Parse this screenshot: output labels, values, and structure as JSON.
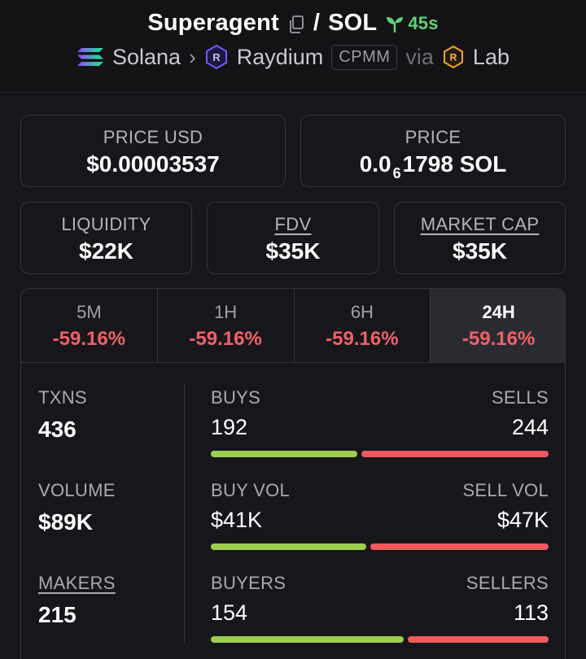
{
  "header": {
    "token": "Superagent",
    "separator": "/",
    "quote": "SOL",
    "age": "45s",
    "chain": "Solana",
    "dex": "Raydium",
    "pool_type": "CPMM",
    "via": "via",
    "launchpad": "Lab"
  },
  "cards": {
    "price_usd": {
      "label": "PRICE USD",
      "value": "$0.00003537"
    },
    "price": {
      "label": "PRICE",
      "prefix": "0.0",
      "zeros": "6",
      "digits": "1798",
      "unit": "SOL"
    },
    "liquidity": {
      "label": "LIQUIDITY",
      "value": "$22K"
    },
    "fdv": {
      "label": "FDV",
      "value": "$35K"
    },
    "market_cap": {
      "label": "MARKET CAP",
      "value": "$35K"
    }
  },
  "tabs": [
    {
      "label": "5M",
      "change": "-59.16%"
    },
    {
      "label": "1H",
      "change": "-59.16%"
    },
    {
      "label": "6H",
      "change": "-59.16%"
    },
    {
      "label": "24H",
      "change": "-59.16%"
    }
  ],
  "metrics": {
    "txns": {
      "label": "TXNS",
      "value": "436"
    },
    "volume": {
      "label": "VOLUME",
      "value": "$89K"
    },
    "makers": {
      "label": "MAKERS",
      "value": "215"
    }
  },
  "pairs": {
    "buys_sells": {
      "left_label": "BUYS",
      "right_label": "SELLS",
      "left_value": "192",
      "right_value": "244",
      "buy_fraction": 0.44
    },
    "volume": {
      "left_label": "BUY VOL",
      "right_label": "SELL VOL",
      "left_value": "$41K",
      "right_value": "$47K",
      "buy_fraction": 0.465
    },
    "buyers_sellers": {
      "left_label": "BUYERS",
      "right_label": "SELLERS",
      "left_value": "154",
      "right_value": "113",
      "buy_fraction": 0.577
    }
  },
  "colors": {
    "positive": "#9ccf4f",
    "negative": "#f05a5f",
    "age": "#5fd17a"
  }
}
